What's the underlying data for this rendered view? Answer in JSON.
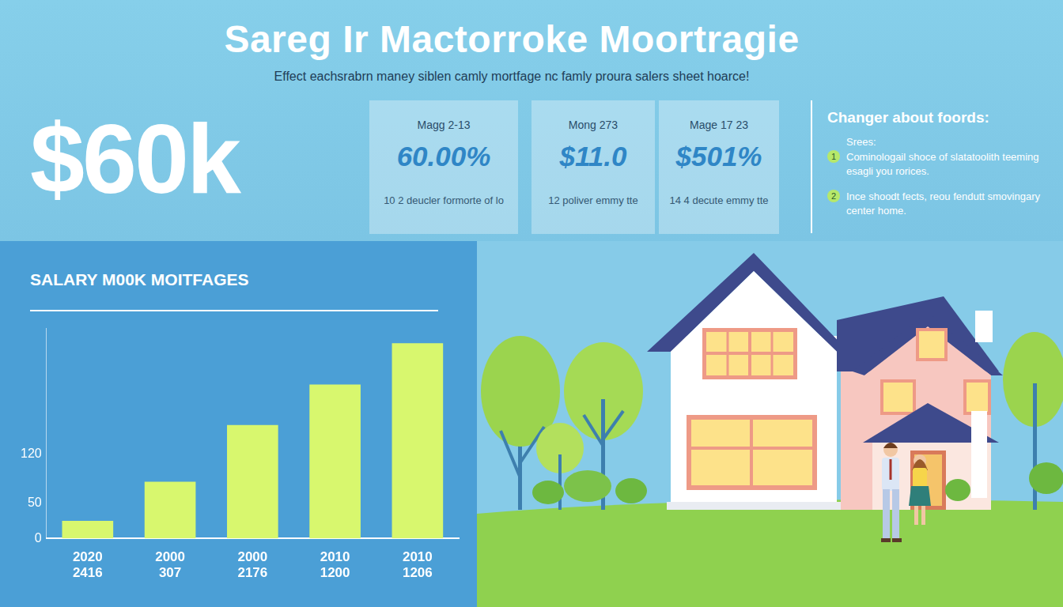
{
  "header": {
    "title": "Sareg Ir Mactorroke Moortragie",
    "subtitle": "Effect eachsrabrn maney siblen camly mortfage nc famly proura salers sheet hoarce!"
  },
  "headline": "$60k",
  "stats": [
    {
      "label": "Magg 2-13",
      "value": "60.00%",
      "note": "10 2 deucler formorte of lo"
    },
    {
      "label": "Mong 273",
      "value": "$11.0",
      "note": "12 poliver emmy tte"
    },
    {
      "label": "Mage 17 23",
      "value": "$501%",
      "note": "14 4 decute emmy tte"
    }
  ],
  "notes": {
    "title": "Changer about foords:",
    "subtitle": "Srees:",
    "items": [
      {
        "number": "1",
        "text": "Cominologail shoce of slatatoolith teeming esagli you rorices."
      },
      {
        "number": "2",
        "text": "Ince shoodt fects, reou fendutt smovingary center home."
      }
    ]
  },
  "chart_data": {
    "type": "bar",
    "title": "SALARY M00K MOITFAGES",
    "categories": [
      [
        "2020",
        "2416"
      ],
      [
        "2000",
        "307"
      ],
      [
        "2000",
        "2176"
      ],
      [
        "2010",
        "1200"
      ],
      [
        "2010",
        "1206"
      ]
    ],
    "values": [
      25,
      81,
      162,
      220,
      279
    ],
    "color": "#d8f76e",
    "ylim": [
      0,
      300
    ],
    "yticks": [
      0,
      50,
      120
    ],
    "grid": false
  }
}
